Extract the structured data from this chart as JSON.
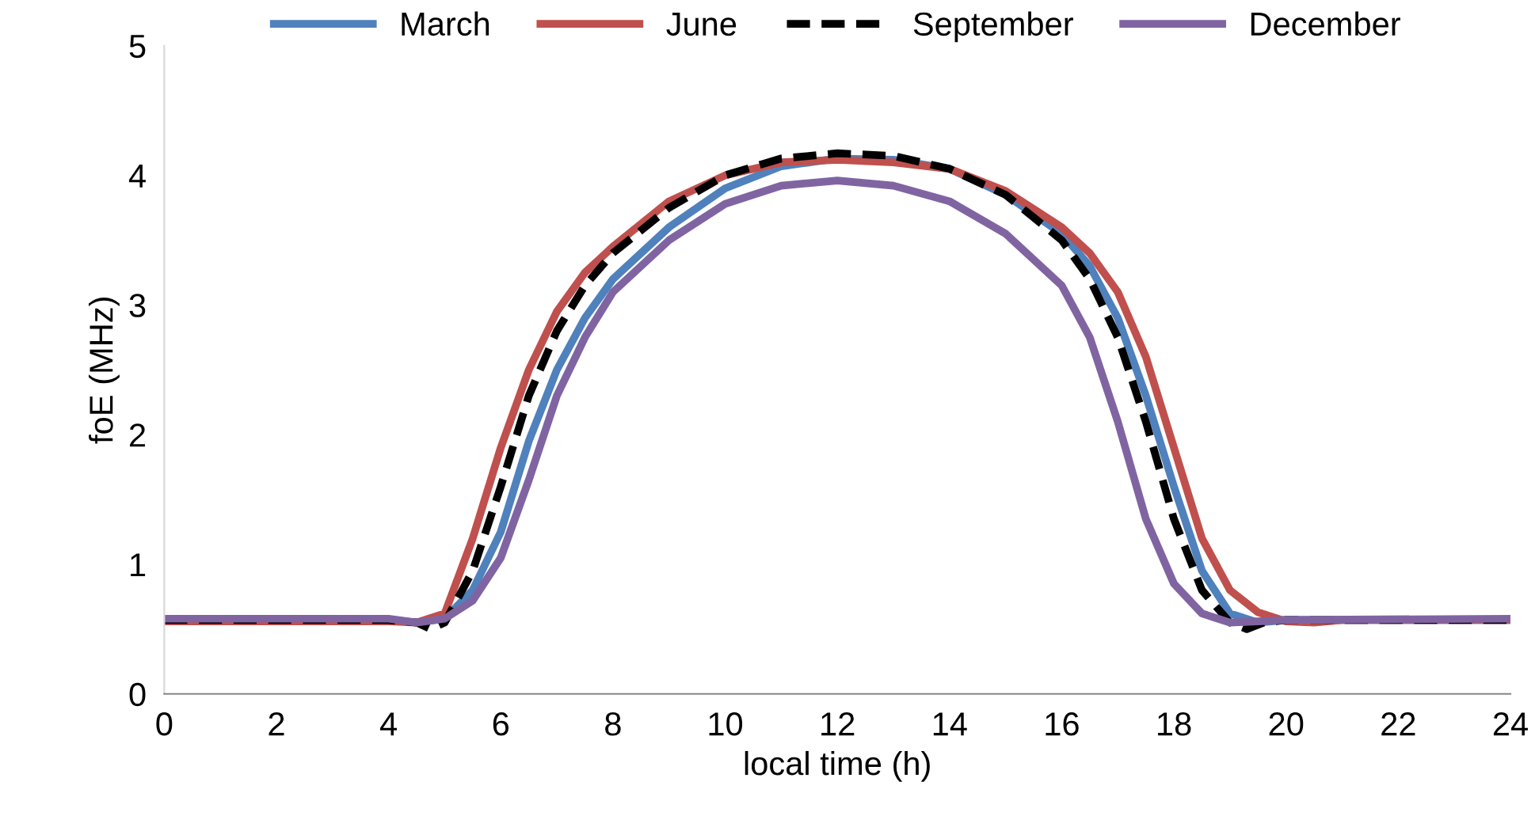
{
  "chart_data": {
    "type": "line",
    "xlabel": "local time (h)",
    "ylabel": "foE (MHz)",
    "xlim": [
      0,
      24
    ],
    "xticks": [
      0,
      2,
      4,
      6,
      8,
      10,
      12,
      14,
      16,
      18,
      20,
      22,
      24
    ],
    "ylim": [
      0,
      5
    ],
    "yticks": [
      0,
      1,
      2,
      3,
      4,
      5
    ],
    "grid": false,
    "legend": "top",
    "marker": "none",
    "series": [
      {
        "name": "March",
        "color": "#4f81bd",
        "line_style": "solid",
        "x": [
          0,
          4,
          4.5,
          5,
          5.5,
          6,
          6.5,
          7,
          7.5,
          8,
          9,
          10,
          11,
          12,
          13,
          14,
          15,
          16,
          16.5,
          17,
          17.5,
          18,
          18.5,
          19,
          19.5,
          20,
          24
        ],
        "values": [
          0.57,
          0.57,
          0.55,
          0.58,
          0.8,
          1.25,
          1.95,
          2.5,
          2.9,
          3.2,
          3.6,
          3.9,
          4.07,
          4.13,
          4.12,
          4.05,
          3.85,
          3.55,
          3.3,
          2.9,
          2.3,
          1.6,
          0.95,
          0.62,
          0.55,
          0.57,
          0.57
        ]
      },
      {
        "name": "June",
        "color": "#c0504d",
        "line_style": "solid",
        "x": [
          0,
          4,
          4.5,
          5,
          5.5,
          6,
          6.5,
          7,
          7.5,
          8,
          9,
          10,
          11,
          12,
          13,
          14,
          15,
          16,
          16.5,
          17,
          17.5,
          18,
          18.5,
          19,
          19.5,
          20,
          20.5,
          21,
          24
        ],
        "values": [
          0.56,
          0.56,
          0.55,
          0.62,
          1.2,
          1.9,
          2.5,
          2.95,
          3.25,
          3.45,
          3.8,
          4.0,
          4.1,
          4.12,
          4.1,
          4.05,
          3.88,
          3.6,
          3.4,
          3.1,
          2.6,
          1.9,
          1.2,
          0.8,
          0.63,
          0.56,
          0.55,
          0.57,
          0.57
        ]
      },
      {
        "name": "September",
        "color": "#000000",
        "line_style": "dashed",
        "x": [
          0,
          4,
          4.5,
          4.75,
          5,
          5.5,
          6,
          6.5,
          7,
          7.5,
          8,
          9,
          10,
          11,
          12,
          13,
          14,
          15,
          16,
          16.5,
          17,
          17.5,
          18,
          18.5,
          19,
          19.3,
          19.6,
          20,
          24
        ],
        "values": [
          0.57,
          0.57,
          0.55,
          0.5,
          0.55,
          0.95,
          1.6,
          2.3,
          2.8,
          3.15,
          3.4,
          3.75,
          4.0,
          4.13,
          4.17,
          4.15,
          4.05,
          3.85,
          3.5,
          3.2,
          2.75,
          2.1,
          1.35,
          0.8,
          0.55,
          0.5,
          0.55,
          0.57,
          0.57
        ]
      },
      {
        "name": "December",
        "color": "#8064a2",
        "line_style": "solid",
        "x": [
          0,
          4,
          4.5,
          5,
          5.5,
          6,
          6.5,
          7,
          7.5,
          8,
          9,
          10,
          11,
          12,
          13,
          14,
          15,
          16,
          16.5,
          17,
          17.5,
          18,
          18.5,
          19,
          19.5,
          20,
          24
        ],
        "values": [
          0.58,
          0.58,
          0.55,
          0.58,
          0.72,
          1.05,
          1.65,
          2.3,
          2.75,
          3.1,
          3.5,
          3.78,
          3.92,
          3.96,
          3.92,
          3.8,
          3.55,
          3.15,
          2.75,
          2.1,
          1.35,
          0.85,
          0.62,
          0.55,
          0.56,
          0.57,
          0.58
        ]
      }
    ]
  }
}
